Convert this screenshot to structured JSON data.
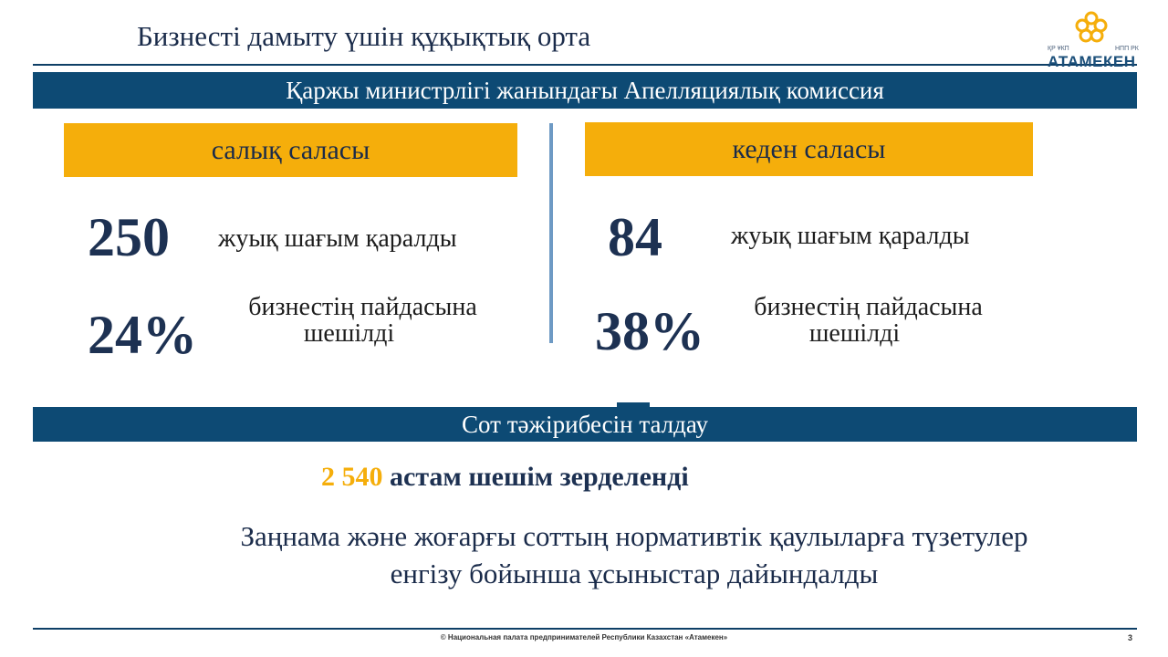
{
  "header": {
    "title": "Бизнесті дамыту үшін құқықтық орта",
    "logo": {
      "left_text": "ҚР ҰКП",
      "right_text": "НПП РК",
      "name": "АТАМЕКЕН",
      "icon": "atameken-knot-logo",
      "color": "#f5ae0b"
    }
  },
  "section1": {
    "heading": "Қаржы министрлігі жанындағы Апелляциялық комиссия",
    "left": {
      "label": "салық саласы",
      "count": "250",
      "count_text": "жуық шағым қаралды",
      "percent": "24%",
      "percent_line1": "бизнестің пайдасына",
      "percent_line2": "шешілді"
    },
    "right": {
      "label": "кеден саласы",
      "count": "84",
      "count_text": "жуық шағым қаралды",
      "percent": "38%",
      "percent_line1": "бизнестің пайдасына",
      "percent_line2": "шешілді"
    }
  },
  "section2": {
    "heading": "Сот тәжірибесін талдау",
    "result_number": "2 540",
    "result_text": "астам шешім зерделенді",
    "note_line1": "Заңнама және жоғарғы соттың нормативтік қаулыларға түзетулер",
    "note_line2": "енгізу бойынша ұсыныстар дайындалды"
  },
  "footer": {
    "copyright": "© Национальная палата предпринимателей Республики Казахстан «Атамекен»",
    "page": "3"
  },
  "colors": {
    "navy": "#0d4a74",
    "gold": "#f5ae0b",
    "divider": "#6e9ac4",
    "text_dark": "#1d3152"
  }
}
